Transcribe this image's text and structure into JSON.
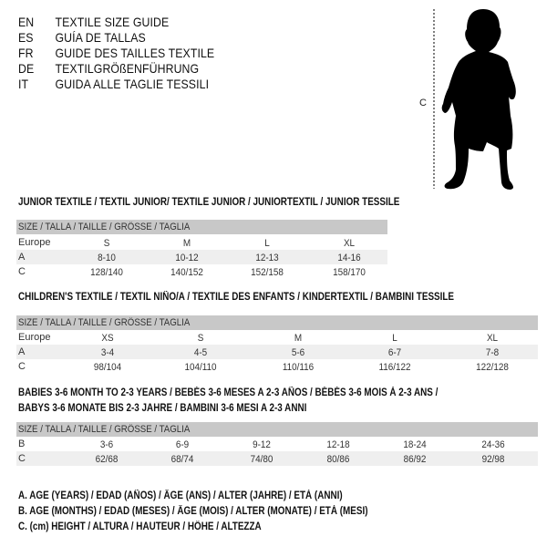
{
  "languages": [
    {
      "code": "EN",
      "title": "TEXTILE SIZE GUIDE"
    },
    {
      "code": "ES",
      "title": "GUÍA DE TALLAS"
    },
    {
      "code": "FR",
      "title": "GUIDE DES TAILLES TEXTILE"
    },
    {
      "code": "DE",
      "title": "TEXTILGRÖßENFÜHRUNG"
    },
    {
      "code": "IT",
      "title": "GUIDA ALLE TAGLIE TESSILI"
    }
  ],
  "figure": {
    "height_label": "C",
    "icon": "child-silhouette"
  },
  "size_header": "SIZE / TALLA / TAILLE / GRÖSSE / TAGLIA",
  "junior": {
    "heading": "JUNIOR TEXTILE / TEXTIL JUNIOR/ TEXTILE JUNIOR / JUNIORTEXTIL / JUNIOR TESSILE",
    "rows": [
      {
        "label": "Europe",
        "values": [
          "S",
          "M",
          "L",
          "XL"
        ]
      },
      {
        "label": "A",
        "values": [
          "8-10",
          "10-12",
          "12-13",
          "14-16"
        ]
      },
      {
        "label": "C",
        "values": [
          "128/140",
          "140/152",
          "152/158",
          "158/170"
        ]
      }
    ]
  },
  "children": {
    "heading": "CHILDREN'S TEXTILE / TEXTIL NIÑO/A / TEXTILE DES ENFANTS / KINDERTEXTIL / BAMBINI TESSILE",
    "rows": [
      {
        "label": "Europe",
        "values": [
          "XS",
          "S",
          "M",
          "L",
          "XL"
        ]
      },
      {
        "label": "A",
        "values": [
          "3-4",
          "4-5",
          "5-6",
          "6-7",
          "7-8"
        ]
      },
      {
        "label": "C",
        "values": [
          "98/104",
          "104/110",
          "110/116",
          "116/122",
          "122/128"
        ]
      }
    ]
  },
  "babies": {
    "heading_line1": "BABIES 3-6 MONTH TO 2-3 YEARS / BEBÉS 3-6 MESES A 2-3 AÑOS / BÉBÉS 3-6 MOIS À 2-3 ANS /",
    "heading_line2": "BABYS 3-6 MONATE BIS 2-3 JAHRE / BAMBINI 3-6 MESI A 2-3 ANNI",
    "rows": [
      {
        "label": "B",
        "values": [
          "3-6",
          "6-9",
          "9-12",
          "12-18",
          "18-24",
          "24-36"
        ]
      },
      {
        "label": "C",
        "values": [
          "62/68",
          "68/74",
          "74/80",
          "80/86",
          "86/92",
          "92/98"
        ]
      }
    ]
  },
  "legend": [
    "A. AGE (YEARS) / EDAD (AÑOS) / ÂGE (ANS) / ALTER (JAHRE) / ETÀ (ANNI)",
    "B. AGE (MONTHS) / EDAD (MESES) / ÂGE (MOIS) / ALTER (MONATE) / ETÀ (MESI)",
    "C. (cm) HEIGHT / ALTURA / HAUTEUR / HÖHE / ALTEZZA"
  ]
}
